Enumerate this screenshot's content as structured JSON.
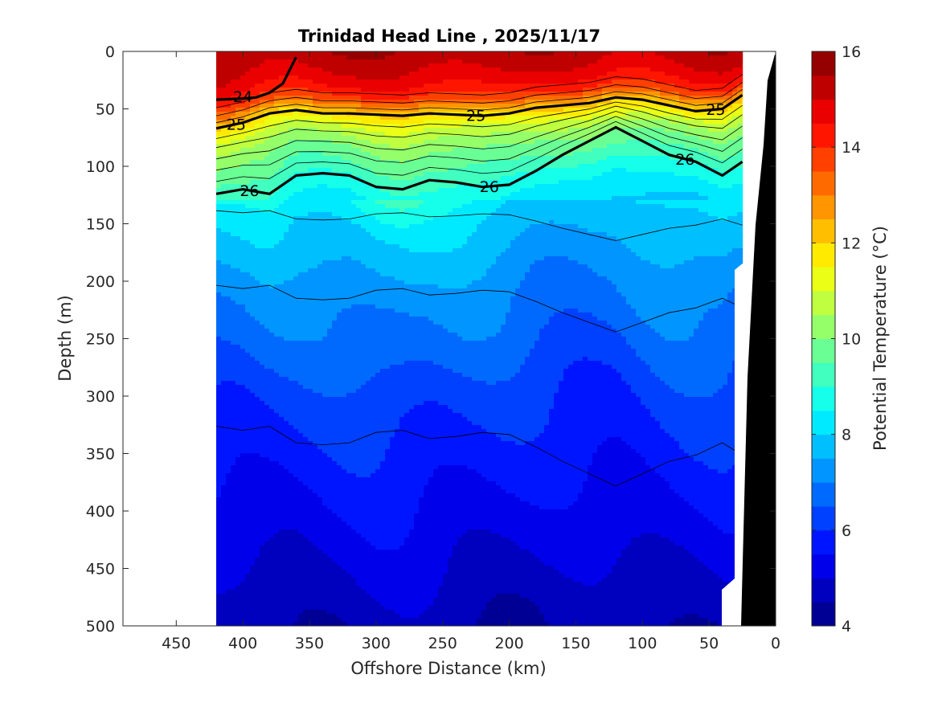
{
  "chart_data": {
    "type": "heatmap",
    "title": "Trinidad Head Line , 2025/11/17",
    "xlabel": "Offshore Distance (km)",
    "ylabel": "Depth (m)",
    "colorbar_label": "Potential Temperature (°C)",
    "xlim": [
      490,
      0
    ],
    "ylim": [
      0,
      500
    ],
    "x_ticks": [
      450,
      400,
      350,
      300,
      250,
      200,
      150,
      100,
      50,
      0
    ],
    "y_ticks": [
      0,
      50,
      100,
      150,
      200,
      250,
      300,
      350,
      400,
      450,
      500
    ],
    "colorbar_range": [
      4,
      16
    ],
    "colorbar_ticks": [
      4,
      6,
      8,
      10,
      12,
      14,
      16
    ],
    "colorbar_levels": 24,
    "data_extent_km": [
      420,
      25
    ],
    "x_profile_km": [
      420,
      400,
      380,
      360,
      340,
      320,
      300,
      280,
      260,
      240,
      220,
      200,
      180,
      160,
      140,
      120,
      100,
      80,
      60,
      40,
      25
    ],
    "temperature_depth_profiles": {
      "depth_m": [
        0,
        10,
        20,
        30,
        40,
        50,
        60,
        70,
        80,
        90,
        100,
        110,
        120,
        130,
        140,
        150,
        175,
        200,
        225,
        250,
        275,
        300,
        325,
        350,
        375,
        400,
        425,
        450,
        475,
        500
      ],
      "temp_C": [
        15.4,
        15.2,
        14.9,
        14.5,
        13.8,
        12.4,
        11.4,
        10.7,
        10.2,
        9.8,
        9.5,
        9.1,
        8.8,
        8.5,
        8.2,
        8.0,
        7.7,
        7.3,
        7.0,
        6.8,
        6.5,
        6.2,
        6.0,
        5.8,
        5.6,
        5.4,
        5.2,
        5.0,
        4.8,
        4.6
      ]
    },
    "isopycnals": [
      {
        "label": "24",
        "sigma": 24.0,
        "bold": true,
        "x": [
          360,
          370,
          380,
          390,
          400,
          420
        ],
        "depth": [
          5,
          28,
          36,
          40,
          41,
          42
        ]
      },
      {
        "label": "25",
        "sigma": 25.0,
        "bold": true,
        "x": [
          420,
          400,
          380,
          360,
          340,
          320,
          300,
          280,
          260,
          240,
          220,
          200,
          180,
          160,
          140,
          120,
          100,
          80,
          60,
          40,
          25
        ],
        "depth": [
          67,
          62,
          54,
          51,
          54,
          54,
          55,
          56,
          54,
          55,
          56,
          54,
          49,
          47,
          45,
          40,
          42,
          47,
          52,
          50,
          38
        ]
      },
      {
        "label": "26",
        "sigma": 26.0,
        "bold": true,
        "x": [
          420,
          400,
          380,
          360,
          340,
          320,
          300,
          280,
          260,
          240,
          220,
          200,
          180,
          160,
          140,
          120,
          100,
          80,
          60,
          40,
          25
        ],
        "depth": [
          124,
          120,
          124,
          108,
          106,
          108,
          118,
          120,
          112,
          114,
          118,
          116,
          104,
          90,
          78,
          66,
          78,
          90,
          96,
          108,
          96
        ]
      }
    ],
    "contour_labels": [
      "24",
      "25",
      "25",
      "25",
      "26",
      "26",
      "26"
    ]
  }
}
